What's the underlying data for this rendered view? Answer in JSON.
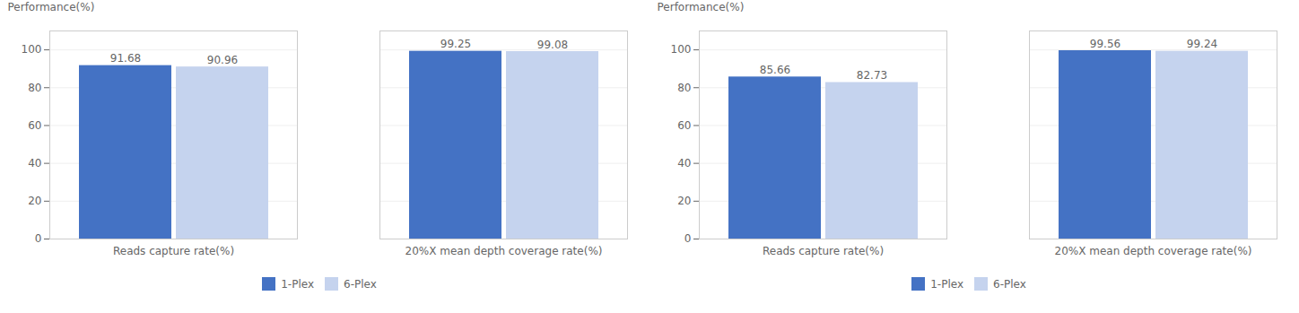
{
  "chart_data": [
    {
      "type": "bar",
      "ylabel": "Performance(%)",
      "categories": [
        "Reads capture rate(%)",
        "20%X mean depth coverage rate(%)"
      ],
      "series": [
        {
          "name": "1-Plex",
          "color": "#4472C4",
          "values": [
            91.68,
            99.25
          ]
        },
        {
          "name": "6-Plex",
          "color": "#C5D3EE",
          "values": [
            90.96,
            99.08
          ]
        }
      ],
      "ylim": [
        0,
        110
      ],
      "yticks": [
        0,
        20,
        40,
        60,
        80,
        100
      ],
      "grid": true,
      "legend": "bottom",
      "data_labels": true
    },
    {
      "type": "bar",
      "ylabel": "Performance(%)",
      "categories": [
        "Reads capture rate(%)",
        "20%X mean depth coverage rate(%)"
      ],
      "series": [
        {
          "name": "1-Plex",
          "color": "#4472C4",
          "values": [
            85.66,
            99.56
          ]
        },
        {
          "name": "6-Plex",
          "color": "#C5D3EE",
          "values": [
            82.73,
            99.24
          ]
        }
      ],
      "ylim": [
        0,
        110
      ],
      "yticks": [
        0,
        20,
        40,
        60,
        80,
        100
      ],
      "grid": true,
      "legend": "bottom",
      "data_labels": true
    }
  ]
}
